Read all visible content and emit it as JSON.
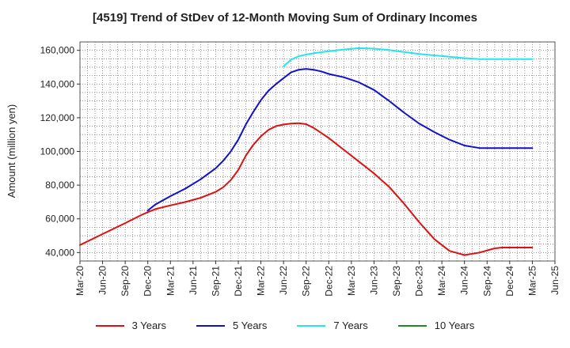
{
  "chart_data": {
    "type": "line",
    "title": "[4519]  Trend of StDev of 12-Month Moving Sum of Ordinary Incomes",
    "xlabel": "",
    "ylabel": "Amount (million yen)",
    "ylim": [
      35000,
      165000
    ],
    "yticks": [
      40000,
      60000,
      80000,
      100000,
      120000,
      140000,
      160000
    ],
    "ytick_labels": [
      "40,000",
      "60,000",
      "80,000",
      "100,000",
      "120,000",
      "140,000",
      "160,000"
    ],
    "x_range_months": [
      0,
      63
    ],
    "xticks": [
      0,
      3,
      6,
      9,
      12,
      15,
      18,
      21,
      24,
      27,
      30,
      33,
      36,
      39,
      42,
      45,
      48,
      51,
      54,
      57,
      60,
      63
    ],
    "xtick_labels": [
      "Mar-20",
      "Jun-20",
      "Sep-20",
      "Dec-20",
      "Mar-21",
      "Jun-21",
      "Sep-21",
      "Dec-21",
      "Mar-22",
      "Jun-22",
      "Sep-22",
      "Dec-22",
      "Mar-23",
      "Jun-23",
      "Sep-23",
      "Dec-23",
      "Mar-24",
      "Jun-24",
      "Sep-24",
      "Dec-24",
      "Mar-25",
      "Jun-25"
    ],
    "grid": true,
    "legend_position": "bottom",
    "series": [
      {
        "name": "3 Years",
        "color": "#dd1111",
        "x": [
          0,
          3,
          6,
          8,
          9,
          10,
          12,
          14,
          16,
          18,
          19,
          20,
          21,
          22,
          23,
          24,
          25,
          26,
          27,
          28,
          29,
          30,
          31,
          32,
          33,
          34,
          35,
          37,
          39,
          41,
          43,
          45,
          47,
          49,
          51,
          53,
          55,
          56,
          57,
          58,
          59,
          60
        ],
        "values": [
          44500,
          51000,
          57500,
          62000,
          64000,
          65800,
          68000,
          70000,
          72500,
          76000,
          78800,
          83000,
          89000,
          97500,
          104000,
          109000,
          112800,
          115000,
          116000,
          116500,
          116800,
          116200,
          114000,
          111000,
          108000,
          104500,
          101000,
          94000,
          87000,
          79000,
          69000,
          58000,
          48000,
          41000,
          38500,
          40000,
          42500,
          43000,
          43000,
          43000,
          43000,
          43000
        ]
      },
      {
        "name": "5 Years",
        "color": "#1111cc",
        "x": [
          9,
          10,
          12,
          14,
          16,
          18,
          19,
          20,
          21,
          22,
          23,
          24,
          25,
          26,
          27,
          28,
          29,
          30,
          31,
          32,
          33,
          35,
          37,
          39,
          41,
          43,
          45,
          47,
          49,
          51,
          53,
          55,
          56,
          57,
          58,
          59,
          60
        ],
        "values": [
          65000,
          68500,
          73500,
          78000,
          83500,
          90000,
          94500,
          100000,
          107000,
          116000,
          123500,
          130500,
          136000,
          140000,
          143500,
          147000,
          148500,
          149000,
          148500,
          147500,
          146000,
          144000,
          141000,
          136500,
          130000,
          123000,
          116500,
          111500,
          107000,
          103500,
          102000,
          102000,
          102000,
          102000,
          102000,
          102000,
          102000
        ]
      },
      {
        "name": "7 Years",
        "color": "#22e5ee",
        "x": [
          27,
          28,
          29,
          30,
          31,
          33,
          35,
          37,
          39,
          41,
          43,
          45,
          47,
          49,
          51,
          53,
          55,
          56,
          57,
          58,
          59,
          60
        ],
        "values": [
          150500,
          154500,
          156500,
          157500,
          158300,
          159500,
          160500,
          161300,
          161000,
          160200,
          159000,
          157800,
          157000,
          156200,
          155400,
          154800,
          154800,
          154800,
          154800,
          154800,
          154800,
          154800
        ]
      },
      {
        "name": "10 Years",
        "color": "#228822",
        "x": [],
        "values": []
      }
    ]
  }
}
